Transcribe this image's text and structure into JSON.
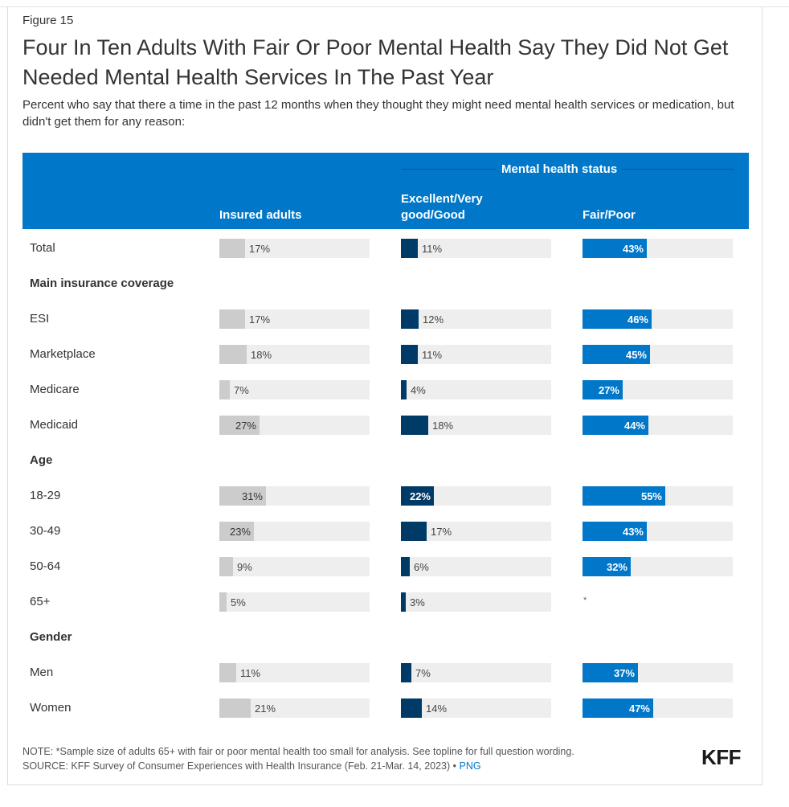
{
  "figure_label": "Figure 15",
  "title": "Four In Ten Adults With Fair Or Poor Mental Health Say They Did Not Get Needed Mental Health Services In The Past Year",
  "subtitle": "Percent who say that there a time in the past 12 months when they thought they might need mental health services or medication, but didn't get them for any reason:",
  "header": {
    "group_label": "Mental health status",
    "columns": [
      "Insured adults",
      "Excellent/Very good/Good",
      "Fair/Poor"
    ],
    "col2_line1": "Excellent/Very",
    "col2_line2": "good/Good"
  },
  "colors": {
    "header_bg": "#0077c8",
    "insured": "#cccccc",
    "good": "#003b67",
    "fair_poor": "#0077c8",
    "track": "#eeeeee"
  },
  "note": "NOTE: *Sample size of adults 65+ with fair or poor mental health too small for analysis. See topline for full question wording.",
  "source": "SOURCE: KFF Survey of Consumer Experiences with Health Insurance (Feb. 21-Mar. 14, 2023) •",
  "png_link": "PNG",
  "logo": "KFF",
  "chart_data": {
    "type": "bar",
    "title": "Four In Ten Adults With Fair Or Poor Mental Health Say They Did Not Get Needed Mental Health Services In The Past Year",
    "xlabel": "",
    "ylabel": "Percent",
    "xlim": [
      0,
      100
    ],
    "series_names": [
      "Insured adults",
      "Excellent/Very good/Good",
      "Fair/Poor"
    ],
    "rows": [
      {
        "label": "Total",
        "type": "data",
        "values": [
          17,
          11,
          43
        ],
        "labels": [
          "17%",
          "11%",
          "43%"
        ]
      },
      {
        "label": "Main insurance coverage",
        "type": "section"
      },
      {
        "label": "ESI",
        "type": "data",
        "values": [
          17,
          12,
          46
        ],
        "labels": [
          "17%",
          "12%",
          "46%"
        ]
      },
      {
        "label": "Marketplace",
        "type": "data",
        "values": [
          18,
          11,
          45
        ],
        "labels": [
          "18%",
          "11%",
          "45%"
        ]
      },
      {
        "label": "Medicare",
        "type": "data",
        "values": [
          7,
          4,
          27
        ],
        "labels": [
          "7%",
          "4%",
          "27%"
        ]
      },
      {
        "label": "Medicaid",
        "type": "data",
        "values": [
          27,
          18,
          44
        ],
        "labels": [
          "27%",
          "18%",
          "44%"
        ]
      },
      {
        "label": "Age",
        "type": "section"
      },
      {
        "label": "18-29",
        "type": "data",
        "values": [
          31,
          22,
          55
        ],
        "labels": [
          "31%",
          "22%",
          "55%"
        ]
      },
      {
        "label": "30-49",
        "type": "data",
        "values": [
          23,
          17,
          43
        ],
        "labels": [
          "23%",
          "17%",
          "43%"
        ]
      },
      {
        "label": "50-64",
        "type": "data",
        "values": [
          9,
          6,
          32
        ],
        "labels": [
          "9%",
          "6%",
          "32%"
        ]
      },
      {
        "label": "65+",
        "type": "data",
        "values": [
          5,
          3,
          null
        ],
        "labels": [
          "5%",
          "3%",
          "*"
        ]
      },
      {
        "label": "Gender",
        "type": "section"
      },
      {
        "label": "Men",
        "type": "data",
        "values": [
          11,
          7,
          37
        ],
        "labels": [
          "11%",
          "7%",
          "37%"
        ]
      },
      {
        "label": "Women",
        "type": "data",
        "values": [
          21,
          14,
          47
        ],
        "labels": [
          "21%",
          "14%",
          "47%"
        ]
      }
    ]
  }
}
